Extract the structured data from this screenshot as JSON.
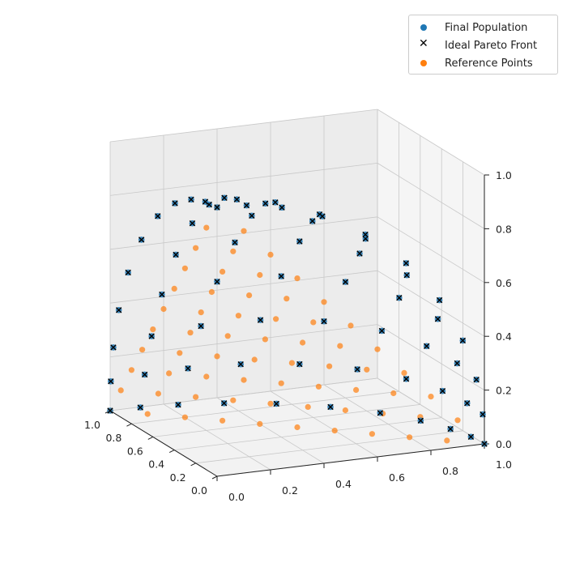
{
  "chart_data": {
    "type": "scatter",
    "projection": "3d",
    "title": "",
    "xlabel": "",
    "ylabel": "",
    "zlabel": "",
    "xlim": [
      0,
      1
    ],
    "ylim": [
      0,
      1
    ],
    "zlim": [
      0,
      1
    ],
    "x_ticks": [
      "0.0",
      "0.2",
      "0.4",
      "0.6",
      "0.8",
      "1.0"
    ],
    "y_ticks": [
      "0.0",
      "0.2",
      "0.4",
      "0.6",
      "0.8",
      "1.0"
    ],
    "z_ticks": [
      "0.0",
      "0.2",
      "0.4",
      "0.6",
      "0.8",
      "1.0"
    ],
    "grid": true,
    "legend_position": "top-right",
    "description_of_data": "Three series on the simplex x+y+z=1 / spherical front in [0,1]^3",
    "series": [
      {
        "name": "Final Population",
        "marker": "circle",
        "color": "#1f77b4",
        "points": [
          [
            1,
            0,
            0
          ],
          [
            0.9,
            0.1,
            0
          ],
          [
            0.8,
            0.2,
            0
          ],
          [
            0.7,
            0.3,
            0
          ],
          [
            0.6,
            0.4,
            0
          ],
          [
            0.5,
            0.5,
            0
          ],
          [
            0.4,
            0.6,
            0
          ],
          [
            0.3,
            0.7,
            0
          ],
          [
            0.2,
            0.8,
            0
          ],
          [
            0.1,
            0.9,
            0
          ],
          [
            0,
            1,
            0
          ],
          [
            0.9,
            0,
            0.1
          ],
          [
            0.8,
            0.1,
            0.1
          ],
          [
            0.7,
            0.2,
            0.1
          ],
          [
            0.6,
            0.3,
            0.1
          ],
          [
            0.5,
            0.4,
            0.1
          ],
          [
            0.4,
            0.5,
            0.1
          ],
          [
            0.3,
            0.6,
            0.1
          ],
          [
            0.2,
            0.7,
            0.1
          ],
          [
            0.1,
            0.8,
            0.1
          ],
          [
            0,
            0.9,
            0.1
          ],
          [
            0.8,
            0,
            0.2
          ],
          [
            0.7,
            0.1,
            0.2
          ],
          [
            0.6,
            0.2,
            0.2
          ],
          [
            0.5,
            0.3,
            0.2
          ],
          [
            0.4,
            0.4,
            0.2
          ],
          [
            0.3,
            0.5,
            0.2
          ],
          [
            0.2,
            0.6,
            0.2
          ],
          [
            0.1,
            0.7,
            0.2
          ],
          [
            0,
            0.8,
            0.2
          ],
          [
            0.7,
            0,
            0.3
          ],
          [
            0.6,
            0.1,
            0.3
          ],
          [
            0.5,
            0.2,
            0.3
          ],
          [
            0.4,
            0.3,
            0.3
          ],
          [
            0.3,
            0.4,
            0.3
          ],
          [
            0.2,
            0.5,
            0.3
          ],
          [
            0.1,
            0.6,
            0.3
          ],
          [
            0,
            0.7,
            0.3
          ],
          [
            0.6,
            0,
            0.4
          ],
          [
            0.5,
            0.1,
            0.4
          ],
          [
            0.4,
            0.2,
            0.4
          ],
          [
            0.3,
            0.3,
            0.4
          ],
          [
            0.2,
            0.4,
            0.4
          ],
          [
            0.1,
            0.5,
            0.4
          ],
          [
            0,
            0.6,
            0.4
          ],
          [
            0.5,
            0,
            0.5
          ],
          [
            0.4,
            0.1,
            0.5
          ],
          [
            0.3,
            0.2,
            0.5
          ],
          [
            0.2,
            0.3,
            0.5
          ],
          [
            0.1,
            0.4,
            0.5
          ],
          [
            0,
            0.5,
            0.5
          ],
          [
            0.4,
            0,
            0.6
          ],
          [
            0.3,
            0.1,
            0.6
          ],
          [
            0.2,
            0.2,
            0.6
          ],
          [
            0.1,
            0.3,
            0.6
          ],
          [
            0,
            0.4,
            0.6
          ],
          [
            0.3,
            0,
            0.7
          ],
          [
            0.2,
            0.1,
            0.7
          ],
          [
            0.1,
            0.2,
            0.7
          ],
          [
            0,
            0.3,
            0.7
          ],
          [
            0.2,
            0,
            0.8
          ],
          [
            0.1,
            0.1,
            0.8
          ],
          [
            0,
            0.2,
            0.8
          ],
          [
            0.1,
            0,
            0.9
          ],
          [
            0,
            0.1,
            0.9
          ],
          [
            0,
            0,
            1
          ]
        ]
      },
      {
        "name": "Ideal Pareto Front",
        "marker": "x",
        "color": "#000000",
        "same_points_as": "Final Population"
      },
      {
        "name": "Reference Points",
        "marker": "circle",
        "color": "#ff7f0e",
        "points_rule": "Das-Dennis lattice on x+y+z=1 with step 0.1"
      }
    ]
  },
  "legend": {
    "items": [
      {
        "label": "Final Population",
        "color": "#1f77b4"
      },
      {
        "label": "Ideal Pareto Front",
        "color": "#000000"
      },
      {
        "label": "Reference Points",
        "color": "#ff7f0e"
      }
    ]
  }
}
